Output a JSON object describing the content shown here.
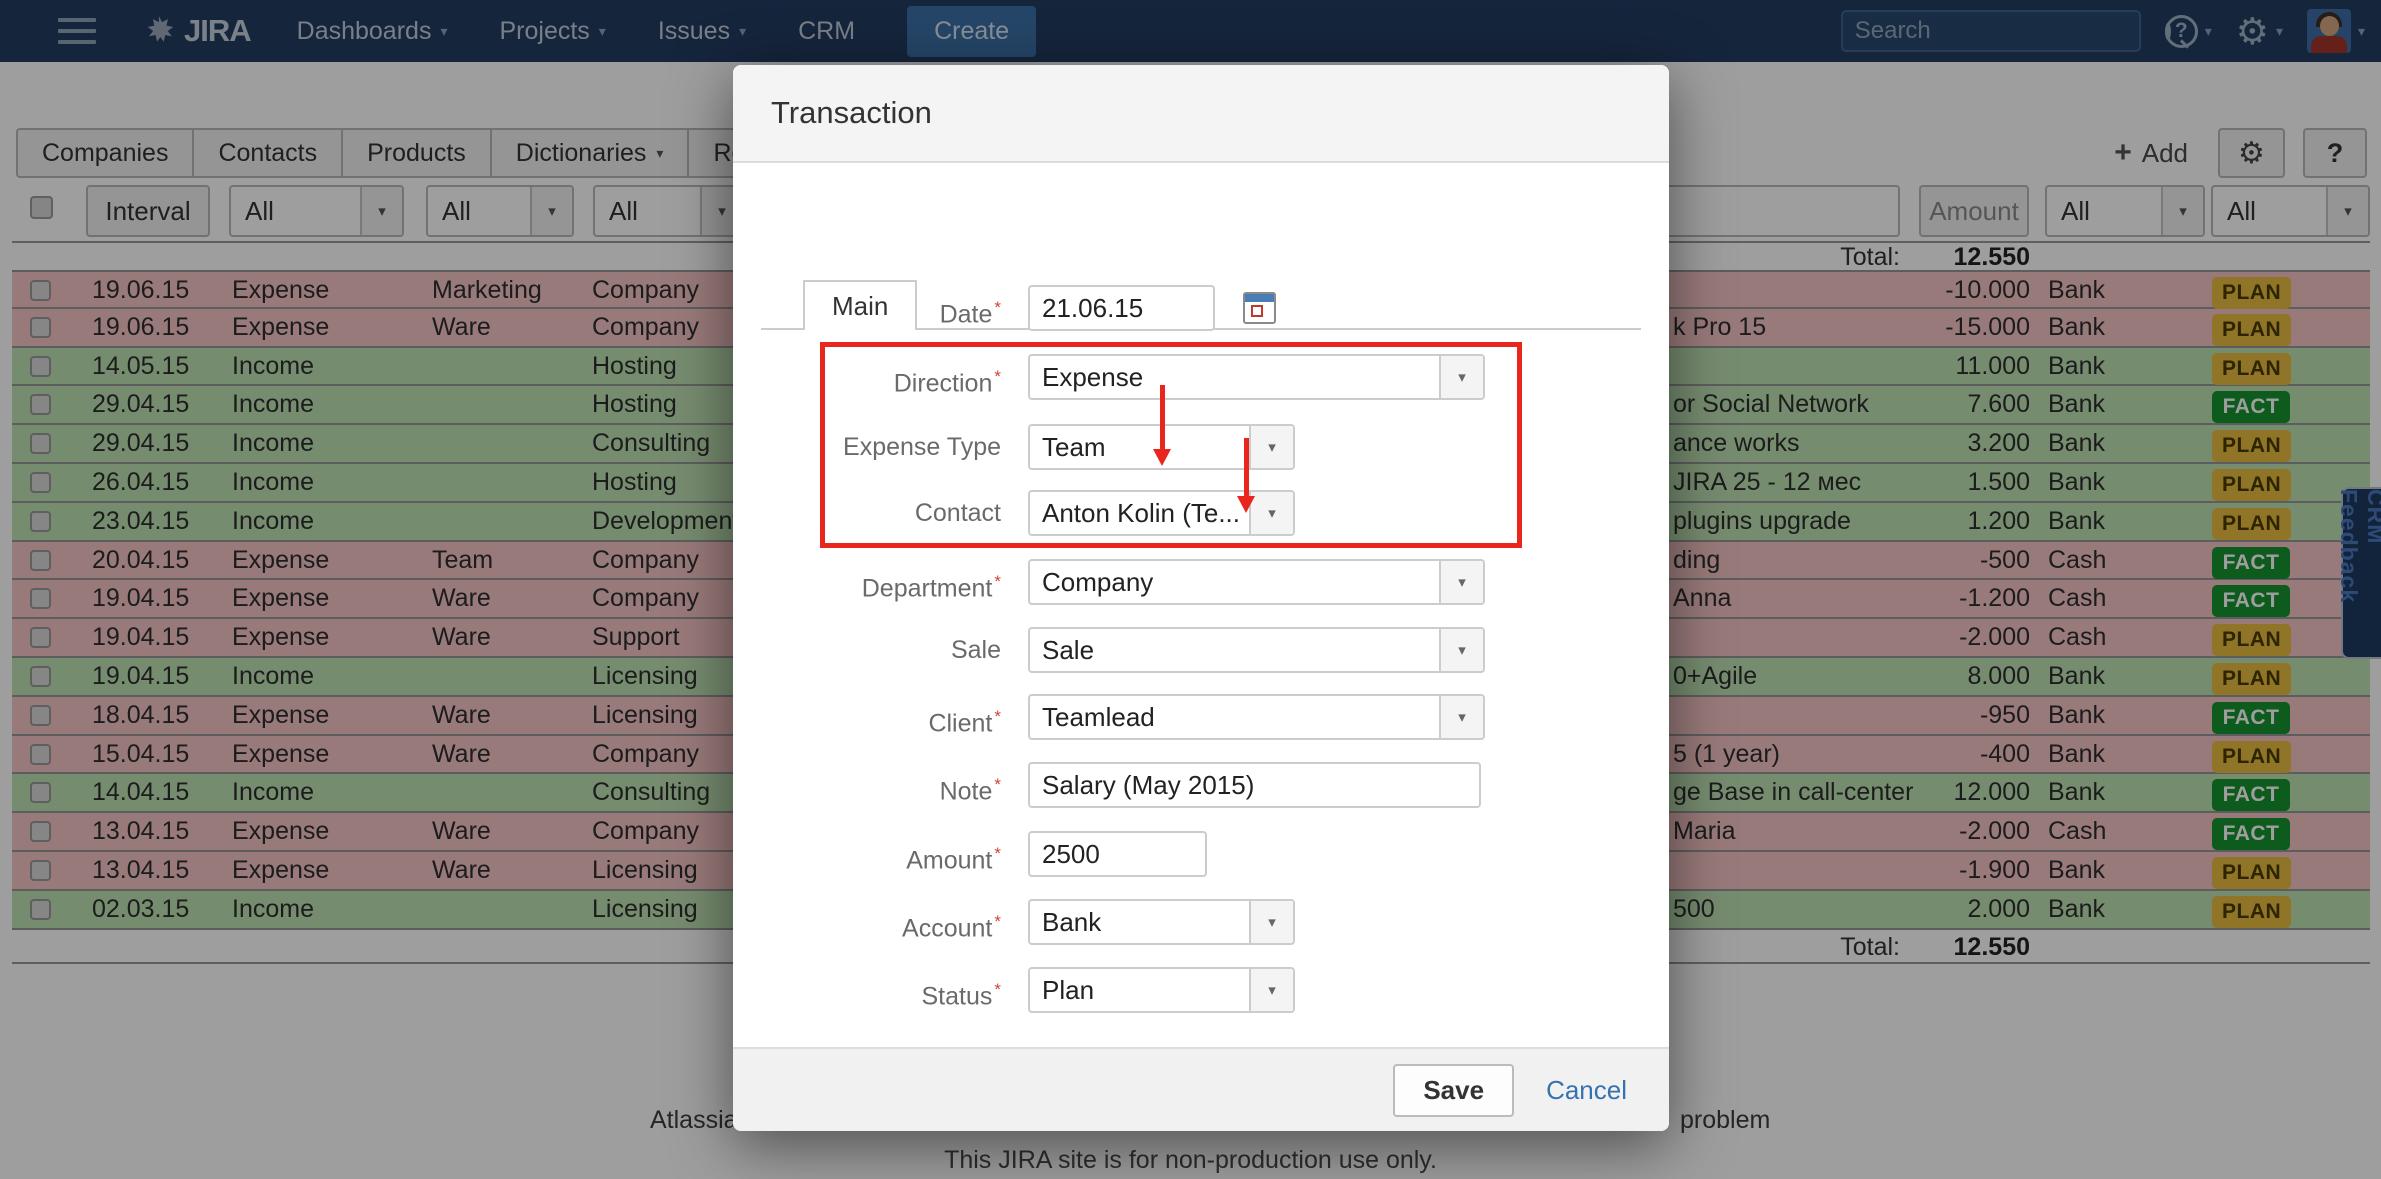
{
  "header": {
    "logo_text": "JIRA",
    "nav_items": [
      {
        "label": "Dashboards",
        "caret": true
      },
      {
        "label": "Projects",
        "caret": true
      },
      {
        "label": "Issues",
        "caret": true
      },
      {
        "label": "CRM",
        "caret": false
      }
    ],
    "create_button": "Create",
    "search_placeholder": "Search"
  },
  "crm_tabs": {
    "items": [
      {
        "label": "Companies",
        "caret": false
      },
      {
        "label": "Contacts",
        "caret": false
      },
      {
        "label": "Products",
        "caret": false
      },
      {
        "label": "Dictionaries",
        "caret": true
      },
      {
        "label": "Repo",
        "caret": false
      }
    ],
    "add_label": "Add",
    "help_label": "?"
  },
  "filters": {
    "interval_button": "Interval",
    "left_dropdowns": [
      "All",
      "All",
      "All"
    ],
    "amount_button": "Amount",
    "right_dropdowns": [
      "All",
      "All"
    ]
  },
  "totals": {
    "label": "Total:",
    "value": "12.550"
  },
  "table": {
    "rows": [
      {
        "date": "19.06.15",
        "direction": "Expense",
        "type": "Marketing",
        "department": "Company",
        "note": "",
        "amount": "-10.000",
        "account": "Bank",
        "status": "PLAN",
        "kind": "expense"
      },
      {
        "date": "19.06.15",
        "direction": "Expense",
        "type": "Ware",
        "department": "Company",
        "note": "k Pro 15",
        "amount": "-15.000",
        "account": "Bank",
        "status": "PLAN",
        "kind": "expense"
      },
      {
        "date": "14.05.15",
        "direction": "Income",
        "type": "",
        "department": "Hosting",
        "note": "",
        "amount": "11.000",
        "account": "Bank",
        "status": "PLAN",
        "kind": "income"
      },
      {
        "date": "29.04.15",
        "direction": "Income",
        "type": "",
        "department": "Hosting",
        "note": "or Social Network",
        "amount": "7.600",
        "account": "Bank",
        "status": "FACT",
        "kind": "income"
      },
      {
        "date": "29.04.15",
        "direction": "Income",
        "type": "",
        "department": "Consulting",
        "note": "ance works",
        "amount": "3.200",
        "account": "Bank",
        "status": "PLAN",
        "kind": "income"
      },
      {
        "date": "26.04.15",
        "direction": "Income",
        "type": "",
        "department": "Hosting",
        "note": "JIRA 25 - 12 мес",
        "amount": "1.500",
        "account": "Bank",
        "status": "PLAN",
        "kind": "income"
      },
      {
        "date": "23.04.15",
        "direction": "Income",
        "type": "",
        "department": "Development",
        "note": "plugins upgrade",
        "amount": "1.200",
        "account": "Bank",
        "status": "PLAN",
        "kind": "income"
      },
      {
        "date": "20.04.15",
        "direction": "Expense",
        "type": "Team",
        "department": "Company",
        "note": "ding",
        "amount": "-500",
        "account": "Cash",
        "status": "FACT",
        "kind": "expense"
      },
      {
        "date": "19.04.15",
        "direction": "Expense",
        "type": "Ware",
        "department": "Company",
        "note": "Anna",
        "amount": "-1.200",
        "account": "Cash",
        "status": "FACT",
        "kind": "expense"
      },
      {
        "date": "19.04.15",
        "direction": "Expense",
        "type": "Ware",
        "department": "Support",
        "note": "",
        "amount": "-2.000",
        "account": "Cash",
        "status": "PLAN",
        "kind": "expense"
      },
      {
        "date": "19.04.15",
        "direction": "Income",
        "type": "",
        "department": "Licensing",
        "note": "0+Agile",
        "amount": "8.000",
        "account": "Bank",
        "status": "PLAN",
        "kind": "income"
      },
      {
        "date": "18.04.15",
        "direction": "Expense",
        "type": "Ware",
        "department": "Licensing",
        "note": "",
        "amount": "-950",
        "account": "Bank",
        "status": "FACT",
        "kind": "expense"
      },
      {
        "date": "15.04.15",
        "direction": "Expense",
        "type": "Ware",
        "department": "Company",
        "note": "5 (1 year)",
        "amount": "-400",
        "account": "Bank",
        "status": "PLAN",
        "kind": "expense"
      },
      {
        "date": "14.04.15",
        "direction": "Income",
        "type": "",
        "department": "Consulting",
        "note": "ge Base in call-center",
        "amount": "12.000",
        "account": "Bank",
        "status": "FACT",
        "kind": "income"
      },
      {
        "date": "13.04.15",
        "direction": "Expense",
        "type": "Ware",
        "department": "Company",
        "note": "Maria",
        "amount": "-2.000",
        "account": "Cash",
        "status": "FACT",
        "kind": "expense"
      },
      {
        "date": "13.04.15",
        "direction": "Expense",
        "type": "Ware",
        "department": "Licensing",
        "note": "",
        "amount": "-1.900",
        "account": "Bank",
        "status": "PLAN",
        "kind": "expense"
      },
      {
        "date": "02.03.15",
        "direction": "Income",
        "type": "",
        "department": "Licensing",
        "note": "500",
        "amount": "2.000",
        "account": "Bank",
        "status": "PLAN",
        "kind": "income"
      }
    ]
  },
  "modal": {
    "title": "Transaction",
    "tab_label": "Main",
    "fields": [
      {
        "label": "Date",
        "required": true,
        "type": "date",
        "value": "21.06.15"
      },
      {
        "label": "Direction",
        "required": true,
        "type": "select-wide",
        "value": "Expense"
      },
      {
        "label": "Expense Type",
        "required": false,
        "type": "select-narrow",
        "value": "Team"
      },
      {
        "label": "Contact",
        "required": false,
        "type": "select-narrow",
        "value": "Anton Kolin (Te..."
      },
      {
        "label": "Department",
        "required": true,
        "type": "select-wide",
        "value": "Company"
      },
      {
        "label": "Sale",
        "required": false,
        "type": "select-wide",
        "value": "Sale"
      },
      {
        "label": "Client",
        "required": true,
        "type": "select-wide",
        "value": "Teamlead"
      },
      {
        "label": "Note",
        "required": true,
        "type": "text-wide",
        "value": "Salary (May 2015)"
      },
      {
        "label": "Amount",
        "required": true,
        "type": "text-small",
        "value": "2500"
      },
      {
        "label": "Account",
        "required": true,
        "type": "select-narrow",
        "value": "Bank"
      },
      {
        "label": "Status",
        "required": true,
        "type": "select-narrow",
        "value": "Plan"
      }
    ],
    "save_button": "Save",
    "cancel_link": "Cancel"
  },
  "feedback_tab": {
    "label": "CRM Feedback"
  },
  "footer": {
    "left_fragment": "Atlassia",
    "right_fragment": "problem",
    "notice": "This JIRA site is for non-production use only."
  },
  "colors": {
    "header_navy": "#223d61",
    "create_blue": "#3c72a8",
    "row_expense": "#f7c6c6",
    "row_income": "#bfe2b4",
    "plan_bg": "#e8bc3f",
    "plan_text": "#4a3a00",
    "fact_bg": "#159430",
    "fact_text": "#ffffff",
    "annotation_red": "#e8261d",
    "link_blue": "#3572b0"
  }
}
